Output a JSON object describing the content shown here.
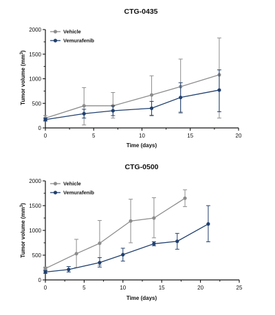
{
  "colors": {
    "vehicle": "#8c8c8c",
    "vemurafenib": "#1f3f6e",
    "axis": "#111111"
  },
  "chart_data": [
    {
      "type": "line",
      "title": "CTG-0435",
      "xlabel": "Time (days)",
      "ylabel_main": "Tumor volume (mm",
      "ylabel_sup": "3",
      "ylabel_close": ")",
      "xlim": [
        0,
        20
      ],
      "ylim": [
        0,
        2000
      ],
      "xticks": [
        "0",
        "5",
        "10",
        "15",
        "20"
      ],
      "yticks": [
        "0",
        "500",
        "1000",
        "1500",
        "2000"
      ],
      "legend": "top-left",
      "series": [
        {
          "name": "Vehicle",
          "color": "#8c8c8c",
          "x": [
            0,
            4,
            7,
            11,
            14,
            18
          ],
          "y": [
            200,
            450,
            450,
            670,
            840,
            1080
          ],
          "err_low": [
            150,
            60,
            200,
            260,
            300,
            200
          ],
          "err_high": [
            250,
            820,
            720,
            1060,
            1400,
            1830
          ]
        },
        {
          "name": "Vemurafenib",
          "color": "#1f3f6e",
          "x": [
            0,
            4,
            7,
            11,
            14,
            18
          ],
          "y": [
            170,
            290,
            350,
            400,
            620,
            770
          ],
          "err_low": [
            140,
            200,
            250,
            250,
            320,
            330
          ],
          "err_high": [
            200,
            380,
            450,
            540,
            920,
            1180
          ]
        }
      ]
    },
    {
      "type": "line",
      "title": "CTG-0500",
      "xlabel": "Time (days)",
      "ylabel_main": "Tumor volume (mm",
      "ylabel_sup": "3",
      "ylabel_close": ")",
      "xlim": [
        0,
        25
      ],
      "ylim": [
        0,
        2000
      ],
      "xticks": [
        "0",
        "5",
        "10",
        "15",
        "20",
        "25"
      ],
      "yticks": [
        "0",
        "500",
        "1000",
        "1500",
        "2000"
      ],
      "legend": "top-left",
      "series": [
        {
          "name": "Vehicle",
          "color": "#8c8c8c",
          "x": [
            0,
            4,
            7,
            11,
            14,
            18
          ],
          "y": [
            230,
            530,
            740,
            1190,
            1250,
            1650
          ],
          "err_low": [
            200,
            250,
            300,
            750,
            850,
            1480
          ],
          "err_high": [
            260,
            820,
            1200,
            1630,
            1660,
            1820
          ]
        },
        {
          "name": "Vemurafenib",
          "color": "#1f3f6e",
          "x": [
            0,
            3,
            7,
            10,
            14,
            17,
            21
          ],
          "y": [
            160,
            210,
            350,
            510,
            730,
            780,
            1130
          ],
          "err_low": [
            130,
            160,
            260,
            380,
            690,
            620,
            770
          ],
          "err_high": [
            190,
            270,
            450,
            640,
            770,
            940,
            1500
          ]
        }
      ]
    }
  ]
}
